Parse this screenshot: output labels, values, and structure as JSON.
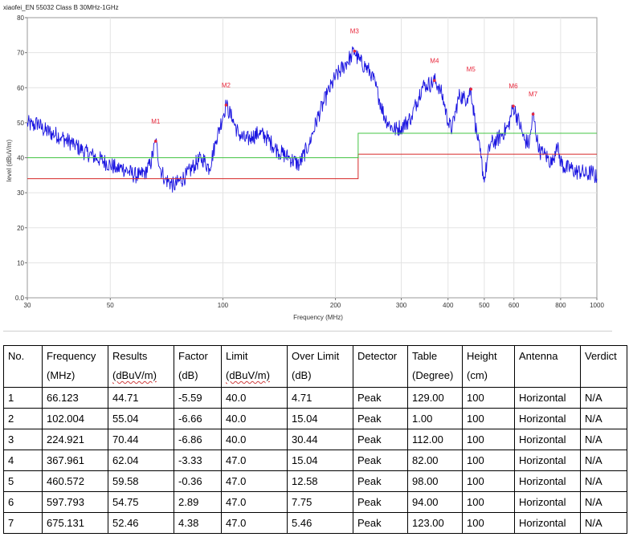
{
  "chart_data": {
    "type": "line",
    "title": "xiaofei_EN 55032 Class B 30MHz-1GHz",
    "xlabel": "Frequency (MHz)",
    "ylabel": "level (dBuV/m)",
    "xscale": "log",
    "xlim": [
      30,
      1000
    ],
    "ylim": [
      0,
      80
    ],
    "xticks": [
      30,
      50,
      100,
      200,
      300,
      400,
      500,
      600,
      800,
      1000
    ],
    "xticklabels": [
      "30",
      "50",
      "100",
      "200",
      "300",
      "400",
      "500",
      "600",
      "800",
      "1000"
    ],
    "yticks": [
      0,
      10,
      20,
      30,
      40,
      50,
      60,
      70,
      80
    ],
    "yticklabels": [
      "0.0",
      "10",
      "20",
      "30",
      "40",
      "50",
      "60",
      "70",
      "80"
    ],
    "grid": true,
    "series": [
      {
        "role": "measurement",
        "color": "#1a14e0",
        "x": [
          30,
          31,
          32,
          33,
          35,
          37,
          38,
          40,
          42,
          44,
          46,
          48,
          50,
          52,
          54,
          56,
          58,
          60,
          62,
          64,
          66.123,
          68,
          70,
          72,
          74,
          76,
          80,
          84,
          88,
          92,
          96,
          100,
          102.004,
          106,
          110,
          115,
          120,
          125,
          130,
          135,
          140,
          150,
          160,
          170,
          180,
          190,
          200,
          210,
          220,
          224.921,
          230,
          240,
          250,
          260,
          270,
          280,
          290,
          300,
          310,
          320,
          330,
          340,
          350,
          360,
          367.961,
          380,
          390,
          400,
          410,
          420,
          430,
          440,
          450,
          460.572,
          470,
          480,
          490,
          500,
          510,
          520,
          540,
          560,
          580,
          597.793,
          620,
          640,
          660,
          675.131,
          700,
          720,
          740,
          760,
          780,
          800,
          820,
          850,
          880,
          910,
          940,
          970,
          1000
        ],
        "y": [
          50,
          49,
          50,
          48,
          47,
          46,
          45,
          44,
          42,
          41,
          40,
          39,
          38,
          37,
          37,
          36,
          35,
          35,
          36,
          38,
          44.71,
          37,
          34,
          33,
          32,
          33,
          35,
          38,
          40,
          37,
          45,
          52,
          55.04,
          51,
          47,
          45,
          46,
          47,
          46,
          44,
          42,
          40,
          38,
          44,
          52,
          58,
          63,
          66,
          69,
          70.44,
          68,
          66,
          64,
          58,
          52,
          49,
          48,
          49,
          50,
          52,
          56,
          60,
          61,
          61,
          62.04,
          60,
          56,
          50,
          48,
          54,
          58,
          57,
          57,
          59.58,
          52,
          45,
          40,
          33,
          40,
          44,
          45,
          47,
          49,
          54.75,
          50,
          45,
          44,
          52.46,
          42,
          41,
          40,
          38,
          44,
          39,
          37,
          37,
          36,
          36,
          35,
          36,
          34
        ]
      },
      {
        "role": "limit",
        "color": "#d62828",
        "x": [
          30,
          230,
          230,
          1000
        ],
        "y": [
          34,
          34,
          41,
          41
        ]
      },
      {
        "role": "limit",
        "color": "#44c444",
        "x": [
          30,
          230,
          230,
          1000
        ],
        "y": [
          40,
          40,
          47,
          47
        ]
      }
    ],
    "markers": [
      {
        "label": "M1",
        "x": 66.123,
        "y": 44.71
      },
      {
        "label": "M2",
        "x": 102.004,
        "y": 55.04
      },
      {
        "label": "M3",
        "x": 224.921,
        "y": 70.44
      },
      {
        "label": "M4",
        "x": 367.961,
        "y": 62.04
      },
      {
        "label": "M5",
        "x": 460.572,
        "y": 59.58
      },
      {
        "label": "M6",
        "x": 597.793,
        "y": 54.75
      },
      {
        "label": "M7",
        "x": 675.131,
        "y": 52.46
      }
    ]
  },
  "table": {
    "headers": [
      {
        "label": "No.",
        "unit": ""
      },
      {
        "label": "Frequency",
        "unit": "(MHz)"
      },
      {
        "label": "Results",
        "unit": "(dBuV/m)"
      },
      {
        "label": "Factor",
        "unit": "(dB)"
      },
      {
        "label": "Limit",
        "unit": "(dBuV/m)"
      },
      {
        "label": "Over Limit",
        "unit": "(dB)"
      },
      {
        "label": "Detector",
        "unit": ""
      },
      {
        "label": "Table",
        "unit": "(Degree)"
      },
      {
        "label": "Height",
        "unit": "(cm)"
      },
      {
        "label": "Antenna",
        "unit": ""
      },
      {
        "label": "Verdict",
        "unit": ""
      }
    ],
    "rows": [
      [
        "1",
        "66.123",
        "44.71",
        "-5.59",
        "40.0",
        "4.71",
        "Peak",
        "129.00",
        "100",
        "Horizontal",
        "N/A"
      ],
      [
        "2",
        "102.004",
        "55.04",
        "-6.66",
        "40.0",
        "15.04",
        "Peak",
        "1.00",
        "100",
        "Horizontal",
        "N/A"
      ],
      [
        "3",
        "224.921",
        "70.44",
        "-6.86",
        "40.0",
        "30.44",
        "Peak",
        "112.00",
        "100",
        "Horizontal",
        "N/A"
      ],
      [
        "4",
        "367.961",
        "62.04",
        "-3.33",
        "47.0",
        "15.04",
        "Peak",
        "82.00",
        "100",
        "Horizontal",
        "N/A"
      ],
      [
        "5",
        "460.572",
        "59.58",
        "-0.36",
        "47.0",
        "12.58",
        "Peak",
        "98.00",
        "100",
        "Horizontal",
        "N/A"
      ],
      [
        "6",
        "597.793",
        "54.75",
        "2.89",
        "47.0",
        "7.75",
        "Peak",
        "94.00",
        "100",
        "Horizontal",
        "N/A"
      ],
      [
        "7",
        "675.131",
        "52.46",
        "4.38",
        "47.0",
        "5.46",
        "Peak",
        "123.00",
        "100",
        "Horizontal",
        "N/A"
      ]
    ]
  }
}
